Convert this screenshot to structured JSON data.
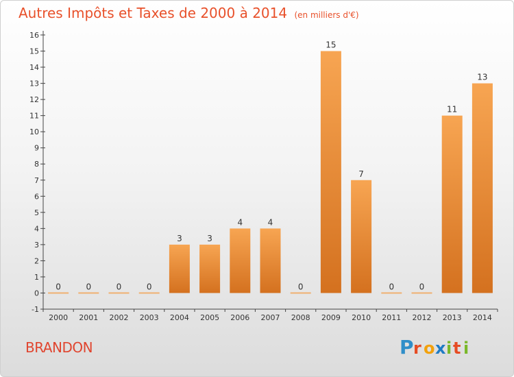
{
  "header": {
    "title": "Autres Impôts et Taxes de 2000 à 2014",
    "unit": "(en milliers d'€)"
  },
  "footer": {
    "town": "BRANDON",
    "logo_text": "Proxiti"
  },
  "colors": {
    "title": "#e8502a",
    "bar_top": "#f7a552",
    "bar_bottom": "#d4711f",
    "zero_bar": "#f0b070",
    "axis": "#444444"
  },
  "chart_data": {
    "type": "bar",
    "title": "Autres Impôts et Taxes de 2000 à 2014",
    "xlabel": "",
    "ylabel": "",
    "categories": [
      "2000",
      "2001",
      "2002",
      "2003",
      "2004",
      "2005",
      "2006",
      "2007",
      "2008",
      "2009",
      "2010",
      "2011",
      "2012",
      "2013",
      "2014"
    ],
    "values": [
      0,
      0,
      0,
      0,
      3,
      3,
      4,
      4,
      0,
      15,
      7,
      0,
      0,
      11,
      13
    ],
    "data_labels": [
      "0",
      "0",
      "0",
      "0",
      "3",
      "3",
      "4",
      "4",
      "0",
      "15",
      "7",
      "0",
      "0",
      "11",
      "13"
    ],
    "ylim": [
      -1,
      16
    ],
    "yticks": [
      -1,
      0,
      1,
      2,
      3,
      4,
      5,
      6,
      7,
      8,
      9,
      10,
      11,
      12,
      13,
      14,
      15,
      16
    ],
    "grid": false,
    "legend": "none"
  }
}
